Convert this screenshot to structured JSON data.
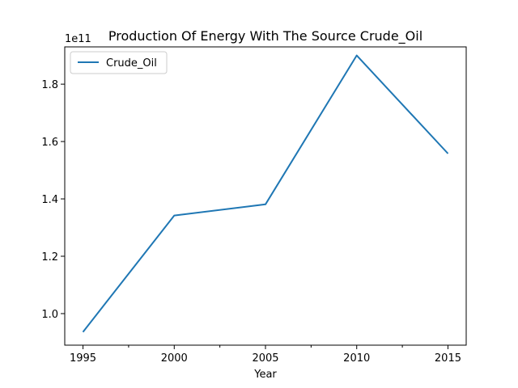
{
  "chart_data": {
    "type": "line",
    "title": "Production Of Energy With The Source Crude_Oil",
    "xlabel": "Year",
    "ylabel": "",
    "y_offset_label": "1e11",
    "x": [
      1995,
      2000,
      2005,
      2010,
      2015
    ],
    "series": [
      {
        "name": "Crude_Oil",
        "color": "#1f77b4",
        "values": [
          93600000000,
          134200000000,
          138100000000,
          190000000000,
          155800000000
        ]
      }
    ],
    "xlim": [
      1994,
      2016
    ],
    "ylim": [
      89000000000,
      193000000000
    ],
    "x_ticks": [
      1995,
      2000,
      2005,
      2010,
      2015
    ],
    "x_tick_labels": [
      "1995",
      "2000",
      "2005",
      "2010",
      "2015"
    ],
    "x_minor_ticks": [
      1997.5,
      2002.5,
      2007.5,
      2012.5
    ],
    "y_ticks": [
      100000000000,
      120000000000,
      140000000000,
      160000000000,
      180000000000
    ],
    "y_tick_labels": [
      "1.0",
      "1.2",
      "1.4",
      "1.6",
      "1.8"
    ],
    "grid": false,
    "legend_position": "top-left"
  }
}
